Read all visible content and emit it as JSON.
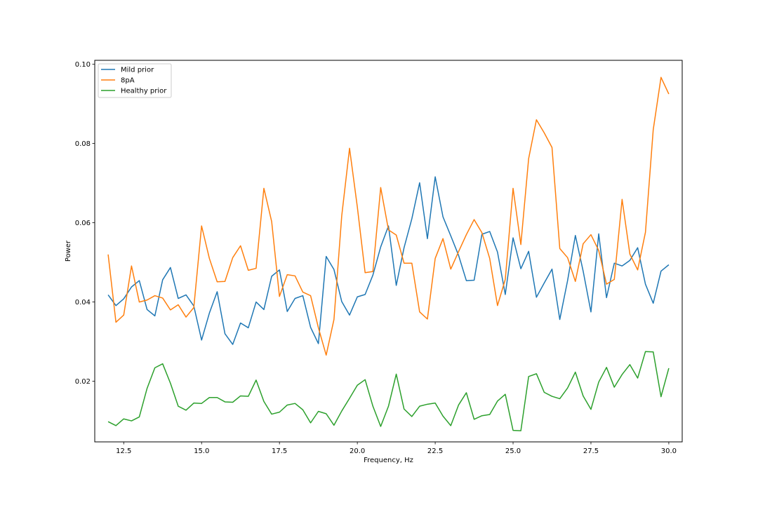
{
  "chart_data": {
    "type": "line",
    "title": "",
    "xlabel": "Frequency, Hz",
    "ylabel": "Power",
    "xlim": [
      11.57,
      30.43
    ],
    "ylim": [
      0.0047,
      0.101
    ],
    "xticks": [
      12.5,
      15.0,
      17.5,
      20.0,
      22.5,
      25.0,
      27.5,
      30.0
    ],
    "xtick_labels": [
      "12.5",
      "15.0",
      "17.5",
      "20.0",
      "22.5",
      "25.0",
      "27.5",
      "30.0"
    ],
    "yticks": [
      0.02,
      0.04,
      0.06,
      0.08,
      0.1
    ],
    "ytick_labels": [
      "0.02",
      "0.04",
      "0.06",
      "0.08",
      "0.10"
    ],
    "grid": false,
    "legend_position": "upper-left",
    "x": [
      12.0,
      12.25,
      12.5,
      12.75,
      13.0,
      13.25,
      13.5,
      13.75,
      14.0,
      14.25,
      14.5,
      14.75,
      15.0,
      15.25,
      15.5,
      15.75,
      16.0,
      16.25,
      16.5,
      16.75,
      17.0,
      17.25,
      17.5,
      17.75,
      18.0,
      18.25,
      18.5,
      18.75,
      19.0,
      19.25,
      19.5,
      19.75,
      20.0,
      20.25,
      20.5,
      20.75,
      21.0,
      21.25,
      21.5,
      21.75,
      22.0,
      22.25,
      22.5,
      22.75,
      23.0,
      23.25,
      23.5,
      23.75,
      24.0,
      24.25,
      24.5,
      24.75,
      25.0,
      25.25,
      25.5,
      25.75,
      26.0,
      26.25,
      26.5,
      26.75,
      27.0,
      27.25,
      27.5,
      27.75,
      28.0,
      28.25,
      28.5,
      28.75,
      29.0,
      29.25,
      29.5,
      29.75,
      30.0
    ],
    "series": [
      {
        "name": "Mild prior",
        "color": "#1f77b4",
        "values": [
          0.0418,
          0.0391,
          0.0408,
          0.0438,
          0.0454,
          0.0381,
          0.0365,
          0.0456,
          0.0487,
          0.0409,
          0.0418,
          0.039,
          0.0304,
          0.0372,
          0.0426,
          0.032,
          0.0293,
          0.0347,
          0.0335,
          0.04,
          0.0381,
          0.0465,
          0.0481,
          0.0376,
          0.0409,
          0.0416,
          0.0336,
          0.0295,
          0.0515,
          0.0482,
          0.0401,
          0.0367,
          0.0413,
          0.0419,
          0.0468,
          0.0539,
          0.0592,
          0.0442,
          0.0537,
          0.061,
          0.0701,
          0.056,
          0.0716,
          0.0615,
          0.0567,
          0.0518,
          0.0454,
          0.0455,
          0.0571,
          0.0578,
          0.0526,
          0.0419,
          0.0562,
          0.0484,
          0.0528,
          0.0412,
          0.0448,
          0.0483,
          0.0356,
          0.0454,
          0.0568,
          0.0478,
          0.0375,
          0.0572,
          0.0411,
          0.0498,
          0.0491,
          0.0505,
          0.0537,
          0.0445,
          0.0397,
          0.0478,
          0.0494
        ]
      },
      {
        "name": "8pA",
        "color": "#ff7f0e",
        "values": [
          0.052,
          0.0349,
          0.0367,
          0.0491,
          0.04,
          0.0405,
          0.0416,
          0.041,
          0.038,
          0.0393,
          0.0362,
          0.0386,
          0.0592,
          0.051,
          0.0451,
          0.0452,
          0.0512,
          0.0542,
          0.048,
          0.0485,
          0.0687,
          0.0603,
          0.0414,
          0.0469,
          0.0466,
          0.0425,
          0.0416,
          0.0335,
          0.0266,
          0.0356,
          0.0618,
          0.0788,
          0.064,
          0.0474,
          0.0477,
          0.0689,
          0.0582,
          0.0569,
          0.0498,
          0.0498,
          0.0375,
          0.0357,
          0.051,
          0.056,
          0.0483,
          0.0527,
          0.057,
          0.0608,
          0.0575,
          0.051,
          0.0391,
          0.0457,
          0.0687,
          0.0545,
          0.0762,
          0.086,
          0.0827,
          0.079,
          0.0535,
          0.0512,
          0.0452,
          0.0547,
          0.057,
          0.053,
          0.0445,
          0.0457,
          0.0659,
          0.0521,
          0.0481,
          0.0576,
          0.0835,
          0.0967,
          0.0925
        ]
      },
      {
        "name": "Healthy prior",
        "color": "#2ca02c",
        "values": [
          0.0098,
          0.0088,
          0.0105,
          0.01,
          0.011,
          0.0182,
          0.0234,
          0.0244,
          0.0195,
          0.0137,
          0.0127,
          0.0145,
          0.0144,
          0.0159,
          0.0159,
          0.0148,
          0.0147,
          0.0163,
          0.0162,
          0.0203,
          0.0149,
          0.0117,
          0.0122,
          0.014,
          0.0144,
          0.0128,
          0.0095,
          0.0124,
          0.0118,
          0.0089,
          0.0125,
          0.0157,
          0.019,
          0.0204,
          0.0137,
          0.0086,
          0.0137,
          0.0218,
          0.013,
          0.0111,
          0.0137,
          0.0142,
          0.0145,
          0.0112,
          0.0088,
          0.014,
          0.0171,
          0.0104,
          0.0113,
          0.0116,
          0.015,
          0.0167,
          0.0076,
          0.0075,
          0.0212,
          0.0219,
          0.0172,
          0.0162,
          0.0156,
          0.0183,
          0.0223,
          0.0163,
          0.0129,
          0.0198,
          0.0235,
          0.0185,
          0.0217,
          0.0242,
          0.0208,
          0.0275,
          0.0274,
          0.0161,
          0.0233
        ]
      }
    ]
  }
}
